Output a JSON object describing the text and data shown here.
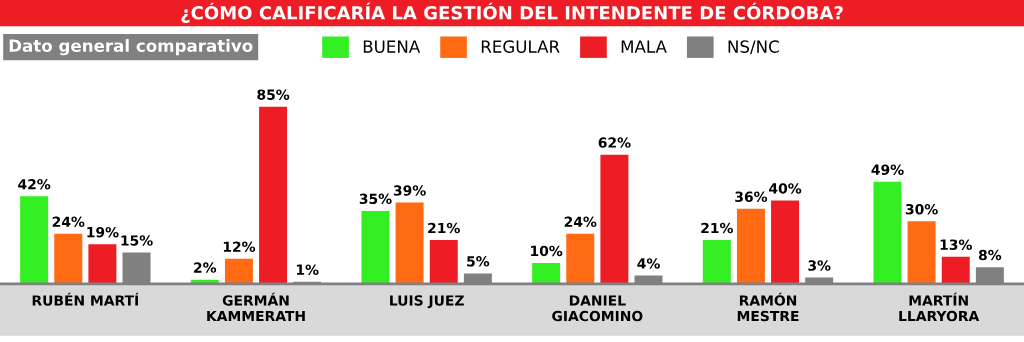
{
  "chart_data": {
    "type": "bar",
    "title": "¿CÓMO CALIFICARÍA LA GESTIÓN DEL INTENDENTE DE CÓRDOBA?",
    "subtitle": "Dato general comparativo",
    "categories": [
      "RUBÉN MARTÍ",
      "GERMÁN\nKAMMERATH",
      "LUIS JUEZ",
      "DANIEL\nGIACOMINO",
      "RAMÓN\nMESTRE",
      "MARTÍN\nLLARYORA"
    ],
    "series": [
      {
        "name": "BUENA",
        "color": "#33ee22",
        "values": [
          42,
          2,
          35,
          10,
          21,
          49
        ],
        "value_labels": [
          "42%",
          "2%",
          "35%",
          "10%",
          "21%",
          "49%"
        ]
      },
      {
        "name": "REGULAR",
        "color": "#ff6a13",
        "values": [
          24,
          12,
          39,
          24,
          36,
          30
        ],
        "value_labels": [
          "24%",
          "12%",
          "39%",
          "24%",
          "36%",
          "30%"
        ]
      },
      {
        "name": "MALA",
        "color": "#ee1c25",
        "values": [
          19,
          85,
          21,
          62,
          40,
          13
        ],
        "value_labels": [
          "19%",
          "85%",
          "21%",
          "62%",
          "40%",
          "13%"
        ]
      },
      {
        "name": "NS/NC",
        "color": "#808080",
        "values": [
          15,
          1,
          5,
          4,
          3,
          8
        ],
        "value_labels": [
          "15%",
          "1%",
          "5%",
          "4%",
          "3%",
          "8%"
        ]
      }
    ],
    "legend": "top",
    "tick_labels": "x",
    "grid": false
  }
}
